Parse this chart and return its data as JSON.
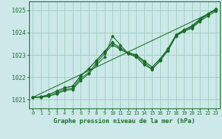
{
  "title": "Graphe pression niveau de la mer (hPa)",
  "background_color": "#cce8e8",
  "grid_color": "#99ccbb",
  "line_color": "#1a6b2a",
  "ylim": [
    1020.6,
    1025.4
  ],
  "xlim": [
    -0.5,
    23.5
  ],
  "yticks": [
    1021,
    1022,
    1023,
    1024,
    1025
  ],
  "xticks": [
    0,
    1,
    2,
    3,
    4,
    5,
    6,
    7,
    8,
    9,
    10,
    11,
    12,
    13,
    14,
    15,
    16,
    17,
    18,
    19,
    20,
    21,
    22,
    23
  ],
  "series": [
    [
      1021.1,
      1021.1,
      1021.15,
      1021.25,
      1021.4,
      1021.45,
      1021.85,
      1022.15,
      1022.55,
      1022.9,
      1023.85,
      1023.45,
      1023.05,
      1022.95,
      1022.65,
      1022.35,
      1022.75,
      1023.2,
      1023.85,
      1024.05,
      1024.2,
      1024.5,
      1024.75,
      1024.95
    ],
    [
      1021.1,
      1021.1,
      1021.15,
      1021.3,
      1021.45,
      1021.5,
      1021.95,
      1022.2,
      1022.65,
      1023.05,
      1023.45,
      1023.25,
      1023.05,
      1022.9,
      1022.55,
      1022.35,
      1022.75,
      1023.2,
      1023.85,
      1024.1,
      1024.25,
      1024.55,
      1024.82,
      1025.02
    ],
    [
      1021.1,
      1021.12,
      1021.22,
      1021.38,
      1021.52,
      1021.6,
      1022.05,
      1022.38,
      1022.75,
      1023.15,
      1023.55,
      1023.3,
      1023.1,
      1023.0,
      1022.72,
      1022.45,
      1022.82,
      1023.28,
      1023.9,
      1024.12,
      1024.3,
      1024.6,
      1024.85,
      1025.05
    ],
    [
      1021.1,
      1021.12,
      1021.22,
      1021.38,
      1021.52,
      1021.6,
      1022.05,
      1022.38,
      1022.75,
      1023.15,
      1023.55,
      1023.3,
      1023.1,
      1023.0,
      1022.72,
      1022.45,
      1022.82,
      1023.28,
      1023.9,
      1024.12,
      1024.3,
      1024.6,
      1024.85,
      1025.05
    ]
  ],
  "straight_line": [
    1021.1,
    1025.0
  ],
  "straight_line_x": [
    0,
    23
  ]
}
